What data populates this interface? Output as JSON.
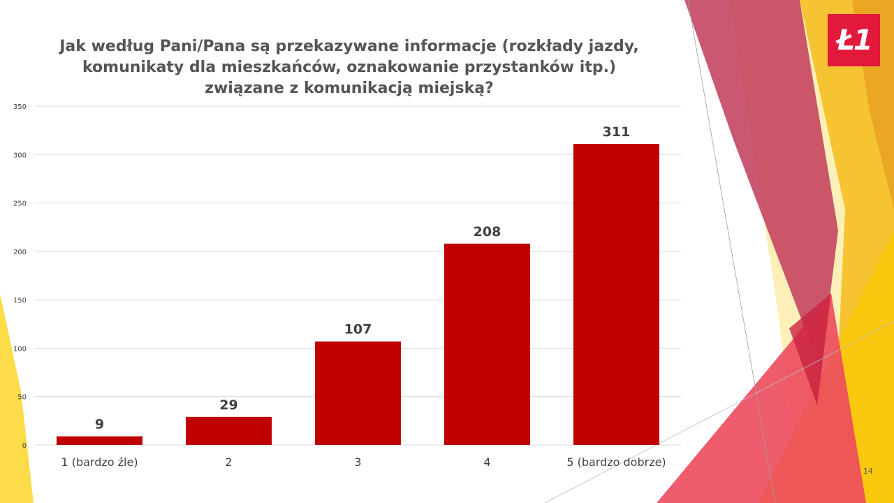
{
  "slide": {
    "title_lines": [
      "Jak według Pani/Pana są przekazywane informacje (rozkłady jazdy,",
      "komunikaty dla mieszkańców, oznakowanie przystanków itp.)",
      "związane z komunikacją miejską?"
    ],
    "logo_text": "Ł1",
    "page_number": "14"
  },
  "colors": {
    "bar": "#c00000",
    "gridline": "#d9d9d9",
    "text": "#404040",
    "title": "#555555",
    "logo_bg": "#e3193b"
  },
  "chart_data": {
    "type": "bar",
    "categories": [
      "1 (bardzo źle)",
      "2",
      "3",
      "4",
      "5 (bardzo dobrze)"
    ],
    "values": [
      9,
      29,
      107,
      208,
      311
    ],
    "data_labels": [
      "9",
      "29",
      "107",
      "208",
      "311"
    ],
    "ylim": [
      0,
      350
    ],
    "yticks": [
      0,
      50,
      100,
      150,
      200,
      250,
      300,
      350
    ],
    "ytick_labels": [
      "0",
      "50",
      "100",
      "150",
      "200",
      "250",
      "300",
      "350"
    ],
    "grid": true,
    "legend": "none"
  }
}
